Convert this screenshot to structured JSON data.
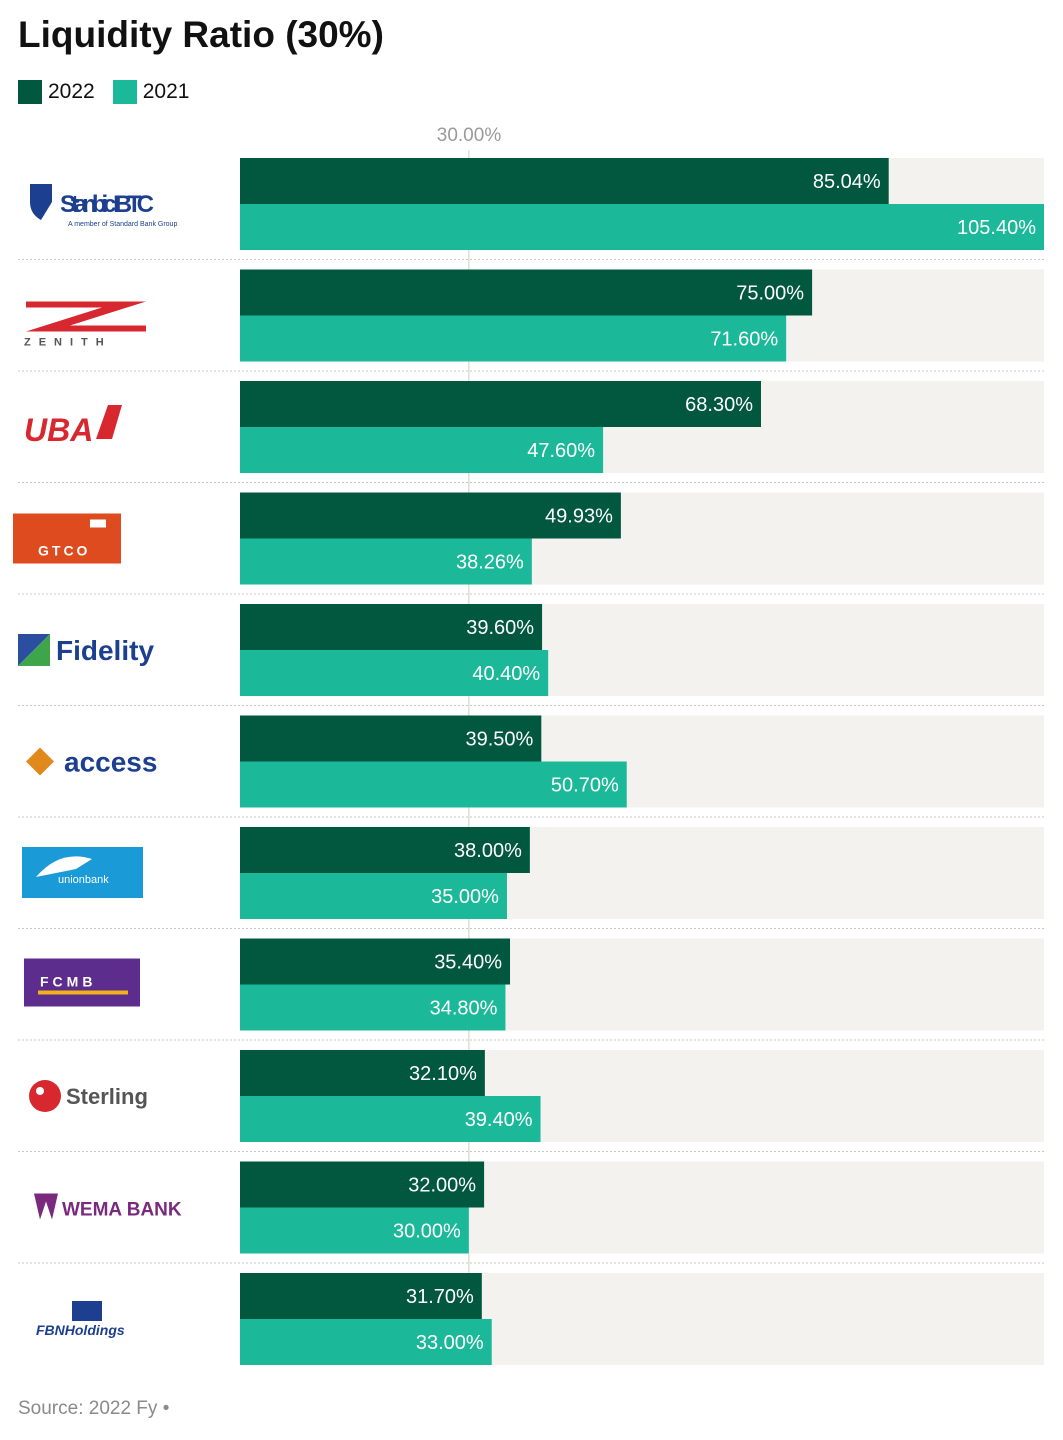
{
  "chart_data": {
    "type": "bar",
    "orientation": "horizontal",
    "title": "Liquidity Ratio (30%)",
    "categories": [
      "Stanbic IBTC",
      "Zenith",
      "UBA",
      "GTCO",
      "Fidelity",
      "Access",
      "Union Bank",
      "FCMB",
      "Sterling",
      "Wema Bank",
      "FBN Holdings"
    ],
    "series": [
      {
        "name": "2022",
        "color": "#02573f",
        "values": [
          85.04,
          75.0,
          68.3,
          49.93,
          39.6,
          39.5,
          38.0,
          35.4,
          32.1,
          32.0,
          31.7
        ],
        "labels": [
          "85.04%",
          "75.00%",
          "68.30%",
          "49.93%",
          "39.60%",
          "39.50%",
          "38.00%",
          "35.40%",
          "32.10%",
          "32.00%",
          "31.70%"
        ]
      },
      {
        "name": "2021",
        "color": "#1bb999",
        "values": [
          105.4,
          71.6,
          47.6,
          38.26,
          40.4,
          50.7,
          35.0,
          34.8,
          39.4,
          30.0,
          33.0
        ],
        "labels": [
          "105.40%",
          "71.60%",
          "47.60%",
          "38.26%",
          "40.40%",
          "50.70%",
          "35.00%",
          "34.80%",
          "39.40%",
          "30.00%",
          "33.00%"
        ]
      }
    ],
    "xlim": [
      0,
      105.4
    ],
    "reference_line": {
      "value": 30,
      "label": "30.00%"
    },
    "legend": "top-left",
    "grid": false
  },
  "logos": [
    {
      "text": "Stanbic IBTC",
      "sub": "A member of Standard Bank Group",
      "icon": "shield-icon"
    },
    {
      "text": "ZENITH",
      "icon": "zenith-z-icon"
    },
    {
      "text": "UBA",
      "icon": "uba-flag-icon"
    },
    {
      "text": "GTCO",
      "icon": "gtco-square-icon"
    },
    {
      "text": "Fidelity",
      "icon": "fidelity-square-icon"
    },
    {
      "text": "access",
      "icon": "access-diamond-icon"
    },
    {
      "text": "unionbank",
      "icon": "union-horse-icon"
    },
    {
      "text": "FCMB",
      "icon": "fcmb-block-icon"
    },
    {
      "text": "Sterling",
      "icon": "sterling-dot-icon"
    },
    {
      "text": "WEMA BANK",
      "icon": "wema-crest-icon"
    },
    {
      "text": "FBNHoldings",
      "icon": "fbn-elephant-icon"
    }
  ],
  "source": "Source: 2022 Fy •"
}
